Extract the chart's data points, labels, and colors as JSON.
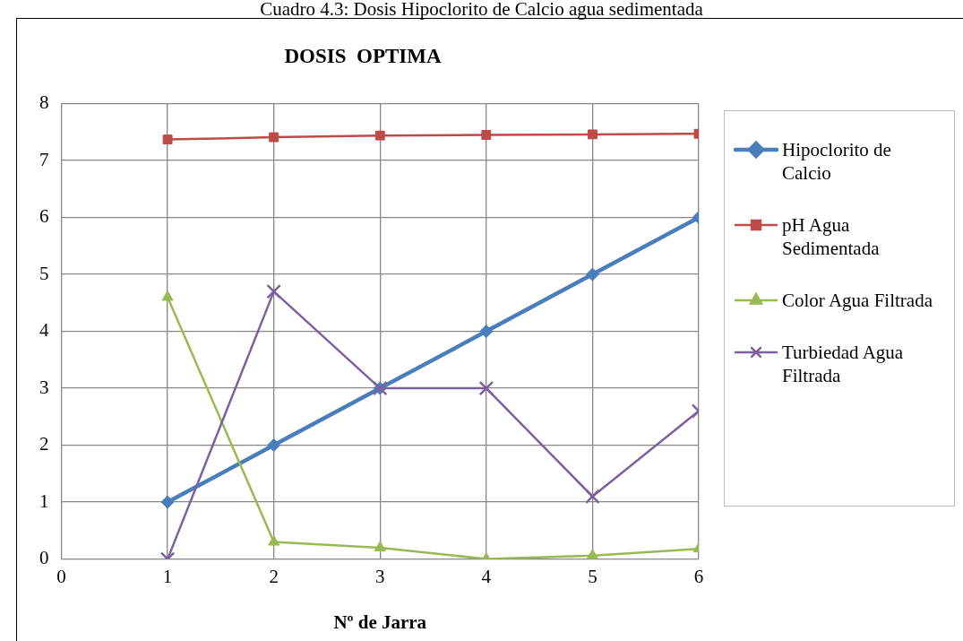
{
  "chart_data": {
    "type": "line",
    "title": "DOSIS  OPTIMA",
    "xlabel": "Nº de Jarra",
    "annotations": [
      "Cuadro 4.3: Dosis Hipoclorito de Calcio agua sedimentada"
    ],
    "x": [
      1,
      2,
      3,
      4,
      5,
      6
    ],
    "xlim": [
      0,
      6
    ],
    "xticks": [
      0,
      1,
      2,
      3,
      4,
      5,
      6
    ],
    "ylim": [
      0,
      8
    ],
    "yticks": [
      0,
      1,
      2,
      3,
      4,
      5,
      6,
      7,
      8
    ],
    "grid": true,
    "legend": "right",
    "series": [
      {
        "name": "Hipoclorito de Calcio",
        "color": "#4a7ebb",
        "marker": "diamond",
        "values": [
          1,
          2,
          3,
          4,
          5,
          6
        ]
      },
      {
        "name": "pH Agua Sedimentada",
        "color": "#be4b48",
        "marker": "square",
        "values": [
          7.37,
          7.41,
          7.44,
          7.45,
          7.46,
          7.47
        ]
      },
      {
        "name": "Color Agua Filtrada",
        "color": "#98b954",
        "marker": "triangle",
        "values": [
          4.6,
          0.3,
          0.2,
          0,
          0.06,
          0.18
        ]
      },
      {
        "name": "Turbiedad Agua Filtrada",
        "color": "#7d60a0",
        "marker": "cross",
        "values": [
          0,
          4.7,
          3,
          3,
          1.1,
          2.6
        ]
      }
    ]
  }
}
